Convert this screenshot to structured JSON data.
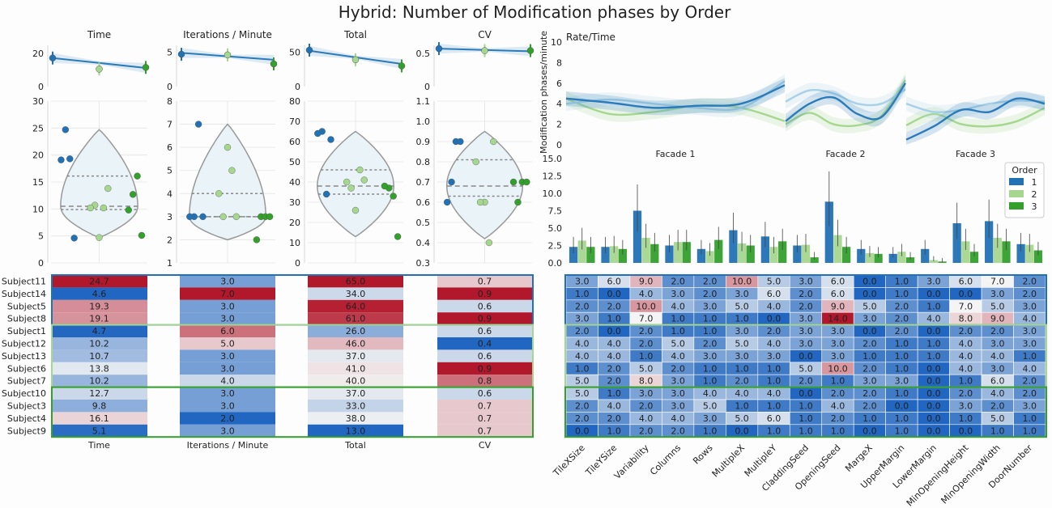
{
  "title": "Hybrid: Number of Modification phases by Order",
  "colors": {
    "order1": "#2171b5",
    "order2": "#a6d78f",
    "order3": "#33a02c",
    "line1": "#2b7bba",
    "line2": "#a8d0e6",
    "line3": "#a6d78f",
    "hmLow": "#2166c0",
    "hmMid": "#f4f4f4",
    "hmHigh": "#b2182b"
  },
  "chart_data": [
    {
      "id": "time",
      "type": "scatter",
      "title": "Time",
      "top": {
        "ylim": [
          0,
          25
        ],
        "yticks": [
          "0",
          "20"
        ],
        "points": [
          [
            1,
            17.3
          ],
          [
            2,
            10.6
          ],
          [
            3,
            11.6
          ]
        ],
        "trend": [
          17.3,
          11.3
        ]
      },
      "main": {
        "ylim": [
          0,
          30
        ],
        "yticks": [
          "0",
          "5",
          "10",
          "15",
          "20",
          "25",
          "30"
        ],
        "violin": {
          "min": 4.7,
          "max": 24.7,
          "mode": 10.5,
          "q1": 9.9,
          "median": 10.5,
          "q3": 16.1
        },
        "groups": [
          [
            24.7,
            19.3,
            19.1,
            4.6
          ],
          [
            4.7,
            10.2,
            10.7,
            13.8,
            10.2
          ],
          [
            12.7,
            16.1,
            9.8,
            5.1
          ]
        ]
      }
    },
    {
      "id": "ipm",
      "type": "scatter",
      "title": "Iterations / Minute",
      "top": {
        "ylim": [
          0,
          6
        ],
        "yticks": [
          "0",
          "5"
        ],
        "points": [
          [
            1,
            4.7
          ],
          [
            2,
            4.6
          ],
          [
            3,
            3.3
          ]
        ],
        "trend": [
          4.9,
          3.9
        ]
      },
      "main": {
        "ylim": [
          1,
          8
        ],
        "yticks": [
          "1",
          "2",
          "3",
          "4",
          "5",
          "6",
          "7",
          "8"
        ],
        "violin": {
          "min": 2.0,
          "max": 7.0,
          "mode": 3.0,
          "q1": 3.0,
          "median": 3.0,
          "q3": 4.0
        },
        "groups": [
          [
            3,
            7,
            3,
            3
          ],
          [
            6,
            5,
            3,
            3,
            4
          ],
          [
            3,
            3,
            2,
            3
          ]
        ]
      }
    },
    {
      "id": "total",
      "type": "scatter",
      "title": "Total",
      "top": {
        "ylim": [
          0,
          60
        ],
        "yticks": [
          "0",
          "50"
        ],
        "points": [
          [
            1,
            53
          ],
          [
            2,
            39
          ],
          [
            3,
            30
          ]
        ],
        "trend": [
          52,
          33
        ]
      },
      "main": {
        "ylim": [
          0,
          80
        ],
        "yticks": [
          "0",
          "10",
          "20",
          "30",
          "40",
          "50",
          "60",
          "70",
          "80"
        ],
        "violin": {
          "min": 13,
          "max": 65,
          "mode": 38,
          "q1": 34,
          "median": 38,
          "q3": 46
        },
        "groups": [
          [
            65,
            34,
            64,
            61
          ],
          [
            26,
            46,
            37,
            41,
            40
          ],
          [
            37,
            33,
            38,
            13
          ]
        ]
      }
    },
    {
      "id": "cv",
      "type": "scatter",
      "title": "CV",
      "top": {
        "ylim": [
          0,
          0.62
        ],
        "yticks": [
          "0",
          "0.5"
        ],
        "points": [
          [
            1,
            0.57
          ],
          [
            2,
            0.54
          ],
          [
            3,
            0.54
          ]
        ],
        "trend": [
          0.57,
          0.53
        ]
      },
      "main": {
        "ylim": [
          0.3,
          1.1
        ],
        "yticks": [
          "0.3",
          "0.4",
          "0.5",
          "0.6",
          "0.7",
          "0.8",
          "0.9",
          "1.0",
          "1.1"
        ],
        "violin": {
          "min": 0.42,
          "max": 0.95,
          "mode": 0.68,
          "q1": 0.63,
          "median": 0.68,
          "q3": 0.81
        },
        "groups": [
          [
            0.7,
            0.9,
            0.6,
            0.9
          ],
          [
            0.6,
            0.4,
            0.6,
            0.9,
            0.8
          ],
          [
            0.6,
            0.7,
            0.7,
            0.7
          ]
        ]
      }
    },
    {
      "id": "rate",
      "type": "line",
      "title": "Rate/Time",
      "ylabel": "Modification phases/minute",
      "ylim": [
        0,
        10
      ],
      "yticks": [
        "0",
        "2",
        "4",
        "6",
        "8",
        "10"
      ],
      "facets": [
        "Facade 1",
        "Facade 2",
        "Facade 3"
      ]
    },
    {
      "id": "bars",
      "type": "bar",
      "ylim": [
        0,
        15
      ],
      "yticks": [
        "0.0",
        "2.5",
        "5.0",
        "7.5",
        "10.0",
        "12.5",
        "15.0"
      ],
      "legend": {
        "title": "Order",
        "entries": [
          "1",
          "2",
          "3"
        ],
        "placement": "top-right"
      },
      "categories": [
        "TileXSize",
        "TileYSize",
        "Variability",
        "Columns",
        "Rows",
        "MultipleX",
        "MultipleY",
        "CladdingSeed",
        "OpeningSeed",
        "MargeX",
        "UpperMargin",
        "LowerMargin",
        "MinOpeningHeight",
        "MinOpeningWidth",
        "DoorNumber"
      ],
      "series": [
        {
          "name": "1",
          "values": [
            2.3,
            2.3,
            7.5,
            2.5,
            2.0,
            4.7,
            3.8,
            2.5,
            8.8,
            2.0,
            1.3,
            2.0,
            5.7,
            6.0,
            2.7
          ]
        },
        {
          "name": "2",
          "values": [
            3.2,
            2.4,
            3.6,
            3.0,
            1.7,
            2.8,
            2.3,
            2.6,
            4.0,
            1.4,
            1.6,
            0.4,
            3.1,
            3.6,
            2.6
          ]
        },
        {
          "name": "3",
          "values": [
            2.3,
            2.0,
            2.7,
            3.0,
            3.3,
            2.5,
            3.1,
            0.8,
            2.3,
            1.3,
            0.8,
            0.2,
            1.6,
            3.1,
            1.8
          ]
        }
      ]
    },
    {
      "id": "table",
      "type": "heatmap",
      "rows": [
        "Subject11",
        "Subject14",
        "Subject5",
        "Subject8",
        "Subject1",
        "Subject12",
        "Subject13",
        "Subject6",
        "Subject7",
        "Subject10",
        "Subject3",
        "Subject4",
        "Subject9"
      ],
      "groups": [
        [
          0,
          3
        ],
        [
          4,
          8
        ],
        [
          9,
          12
        ]
      ],
      "metric_columns": [
        "Time",
        "Iterations / Minute",
        "Total",
        "CV"
      ],
      "metric_values": [
        [
          "24.7",
          "3.0",
          "65.0",
          "0.7"
        ],
        [
          "4.6",
          "7.0",
          "34.0",
          "0.9"
        ],
        [
          "19.3",
          "3.0",
          "64.0",
          "0.6"
        ],
        [
          "19.1",
          "3.0",
          "61.0",
          "0.9"
        ],
        [
          "4.7",
          "6.0",
          "26.0",
          "0.6"
        ],
        [
          "10.2",
          "5.0",
          "46.0",
          "0.4"
        ],
        [
          "10.7",
          "3.0",
          "37.0",
          "0.6"
        ],
        [
          "13.8",
          "3.0",
          "41.0",
          "0.9"
        ],
        [
          "10.2",
          "4.0",
          "40.0",
          "0.8"
        ],
        [
          "12.7",
          "3.0",
          "37.0",
          "0.6"
        ],
        [
          "9.8",
          "3.0",
          "33.0",
          "0.7"
        ],
        [
          "16.1",
          "2.0",
          "38.0",
          "0.7"
        ],
        [
          "5.1",
          "3.0",
          "13.0",
          "0.7"
        ]
      ],
      "param_values": [
        [
          "3.0",
          "6.0",
          "9.0",
          "2.0",
          "2.0",
          "10.0",
          "5.0",
          "3.0",
          "6.0",
          "0.0",
          "1.0",
          "3.0",
          "6.0",
          "7.0",
          "2.0"
        ],
        [
          "1.0",
          "0.0",
          "4.0",
          "3.0",
          "2.0",
          "3.0",
          "6.0",
          "2.0",
          "6.0",
          "0.0",
          "1.0",
          "0.0",
          "0.0",
          "3.0",
          "2.0"
        ],
        [
          "2.0",
          "2.0",
          "10.0",
          "4.0",
          "3.0",
          "5.0",
          "4.0",
          "2.0",
          "9.0",
          "5.0",
          "2.0",
          "1.0",
          "7.0",
          "5.0",
          "3.0"
        ],
        [
          "3.0",
          "1.0",
          "7.0",
          "1.0",
          "1.0",
          "1.0",
          "0.0",
          "3.0",
          "14.0",
          "3.0",
          "2.0",
          "4.0",
          "8.0",
          "9.0",
          "4.0"
        ],
        [
          "2.0",
          "0.0",
          "2.0",
          "1.0",
          "1.0",
          "3.0",
          "2.0",
          "3.0",
          "3.0",
          "0.0",
          "2.0",
          "0.0",
          "2.0",
          "2.0",
          "3.0"
        ],
        [
          "4.0",
          "4.0",
          "2.0",
          "5.0",
          "2.0",
          "5.0",
          "4.0",
          "3.0",
          "3.0",
          "2.0",
          "1.0",
          "1.0",
          "4.0",
          "3.0",
          "3.0"
        ],
        [
          "4.0",
          "4.0",
          "1.0",
          "4.0",
          "3.0",
          "3.0",
          "3.0",
          "0.0",
          "3.0",
          "1.0",
          "1.0",
          "1.0",
          "4.0",
          "4.0",
          "1.0"
        ],
        [
          "1.0",
          "2.0",
          "5.0",
          "2.0",
          "1.0",
          "1.0",
          "1.0",
          "5.0",
          "10.0",
          "2.0",
          "1.0",
          "0.0",
          "4.0",
          "3.0",
          "4.0"
        ],
        [
          "5.0",
          "2.0",
          "8.0",
          "3.0",
          "1.0",
          "2.0",
          "1.0",
          "2.0",
          "1.0",
          "3.0",
          "3.0",
          "0.0",
          "1.0",
          "6.0",
          "2.0"
        ],
        [
          "5.0",
          "1.0",
          "3.0",
          "3.0",
          "4.0",
          "4.0",
          "4.0",
          "0.0",
          "2.0",
          "2.0",
          "1.0",
          "0.0",
          "2.0",
          "4.0",
          "2.0"
        ],
        [
          "2.0",
          "4.0",
          "2.0",
          "3.0",
          "5.0",
          "1.0",
          "1.0",
          "1.0",
          "4.0",
          "2.0",
          "0.0",
          "0.0",
          "3.0",
          "2.0",
          "3.0"
        ],
        [
          "2.0",
          "2.0",
          "4.0",
          "4.0",
          "3.0",
          "5.0",
          "6.0",
          "1.0",
          "2.0",
          "1.0",
          "1.0",
          "0.0",
          "1.0",
          "5.0",
          "1.0"
        ],
        [
          "0.0",
          "1.0",
          "2.0",
          "2.0",
          "1.0",
          "0.0",
          "1.0",
          "1.0",
          "1.0",
          "0.0",
          "1.0",
          "0.0",
          "0.0",
          "1.0",
          "1.0"
        ]
      ]
    }
  ]
}
